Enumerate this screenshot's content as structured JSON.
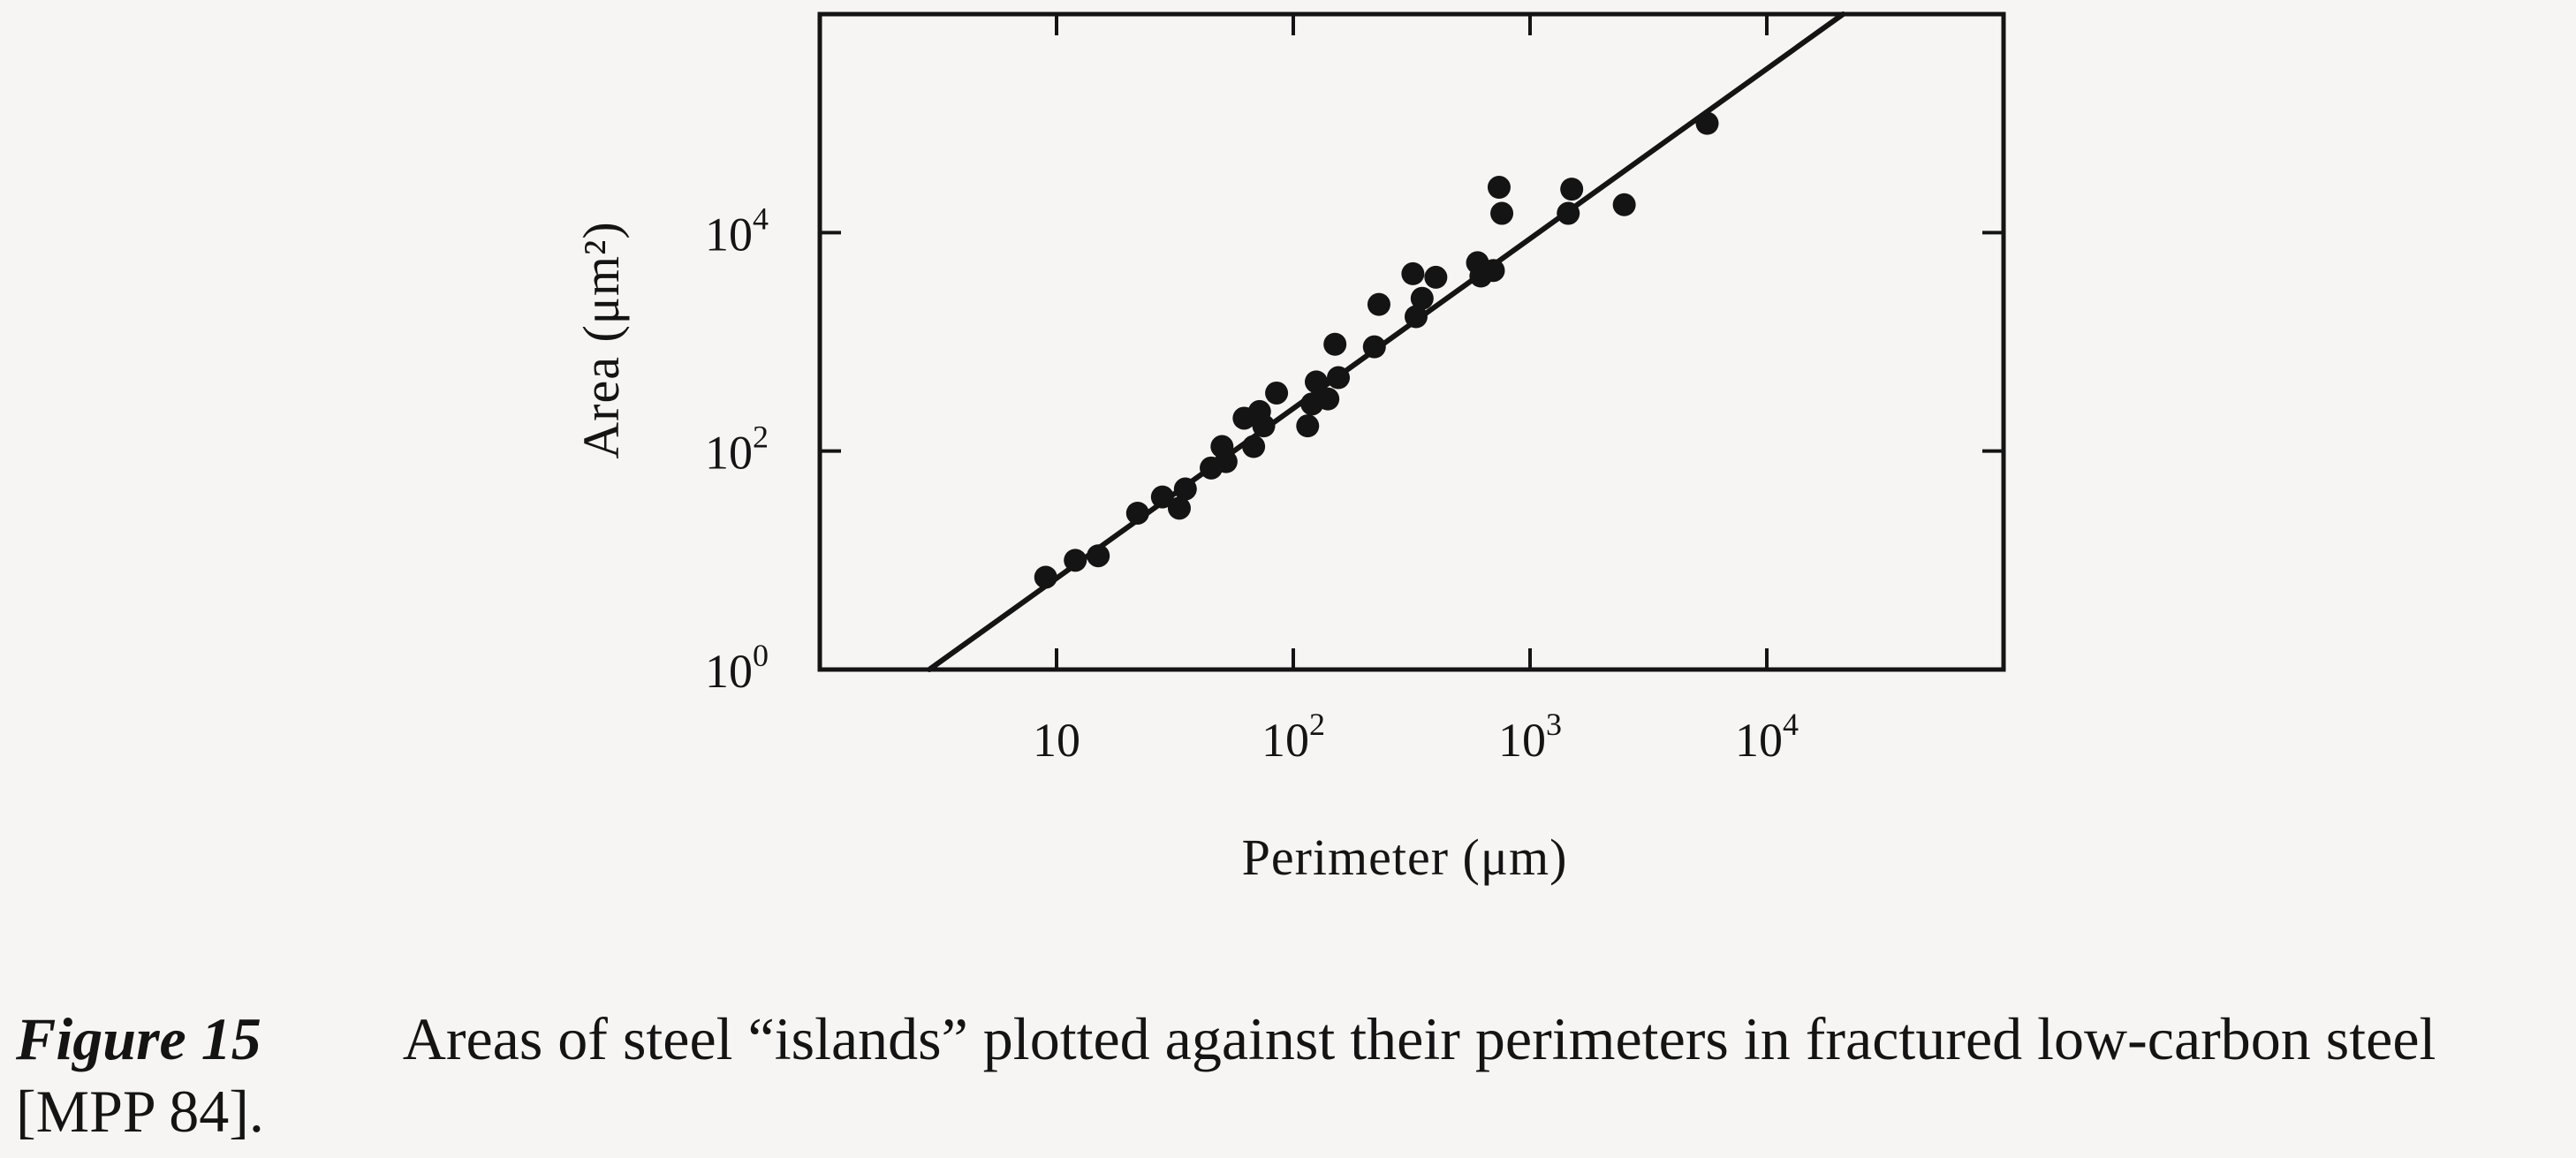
{
  "chart_data": {
    "type": "scatter",
    "title": "",
    "xlabel": "Perimeter (μm)",
    "ylabel": "Area (μm²)",
    "x_scale": "log",
    "y_scale": "log",
    "xlim": [
      1,
      100000
    ],
    "ylim": [
      1,
      1000000
    ],
    "grid": false,
    "legend": "none",
    "x_ticks": [
      {
        "value": 10,
        "base": "10",
        "exp": ""
      },
      {
        "value": 100,
        "base": "10",
        "exp": "2"
      },
      {
        "value": 1000,
        "base": "10",
        "exp": "3"
      },
      {
        "value": 10000,
        "base": "10",
        "exp": "4"
      }
    ],
    "y_ticks": [
      {
        "value": 1,
        "base": "10",
        "exp": "0"
      },
      {
        "value": 100,
        "base": "10",
        "exp": "2"
      },
      {
        "value": 10000,
        "base": "10",
        "exp": "4"
      }
    ],
    "fit_line": {
      "x": [
        2.9,
        21000
      ],
      "y": [
        1,
        1000000
      ]
    },
    "series": [
      {
        "points": [
          [
            9,
            7
          ],
          [
            12,
            10
          ],
          [
            15,
            11
          ],
          [
            22,
            27
          ],
          [
            28,
            38
          ],
          [
            33,
            30
          ],
          [
            35,
            45
          ],
          [
            45,
            70
          ],
          [
            50,
            110
          ],
          [
            52,
            80
          ],
          [
            62,
            200
          ],
          [
            68,
            110
          ],
          [
            72,
            230
          ],
          [
            75,
            170
          ],
          [
            85,
            340
          ],
          [
            115,
            170
          ],
          [
            120,
            270
          ],
          [
            125,
            430
          ],
          [
            140,
            300
          ],
          [
            150,
            950
          ],
          [
            155,
            470
          ],
          [
            220,
            900
          ],
          [
            230,
            2200
          ],
          [
            320,
            4200
          ],
          [
            330,
            1700
          ],
          [
            350,
            2500
          ],
          [
            400,
            3900
          ],
          [
            600,
            5300
          ],
          [
            620,
            4000
          ],
          [
            700,
            4500
          ],
          [
            740,
            26000
          ],
          [
            760,
            15000
          ],
          [
            1450,
            15000
          ],
          [
            1500,
            25000
          ],
          [
            2500,
            18000
          ],
          [
            5600,
            100000
          ]
        ]
      }
    ],
    "caption": {
      "label": "Figure 15",
      "text": "Areas of steel “islands” plotted against their perimeters in fractured low-carbon steel [MPP 84]."
    }
  }
}
